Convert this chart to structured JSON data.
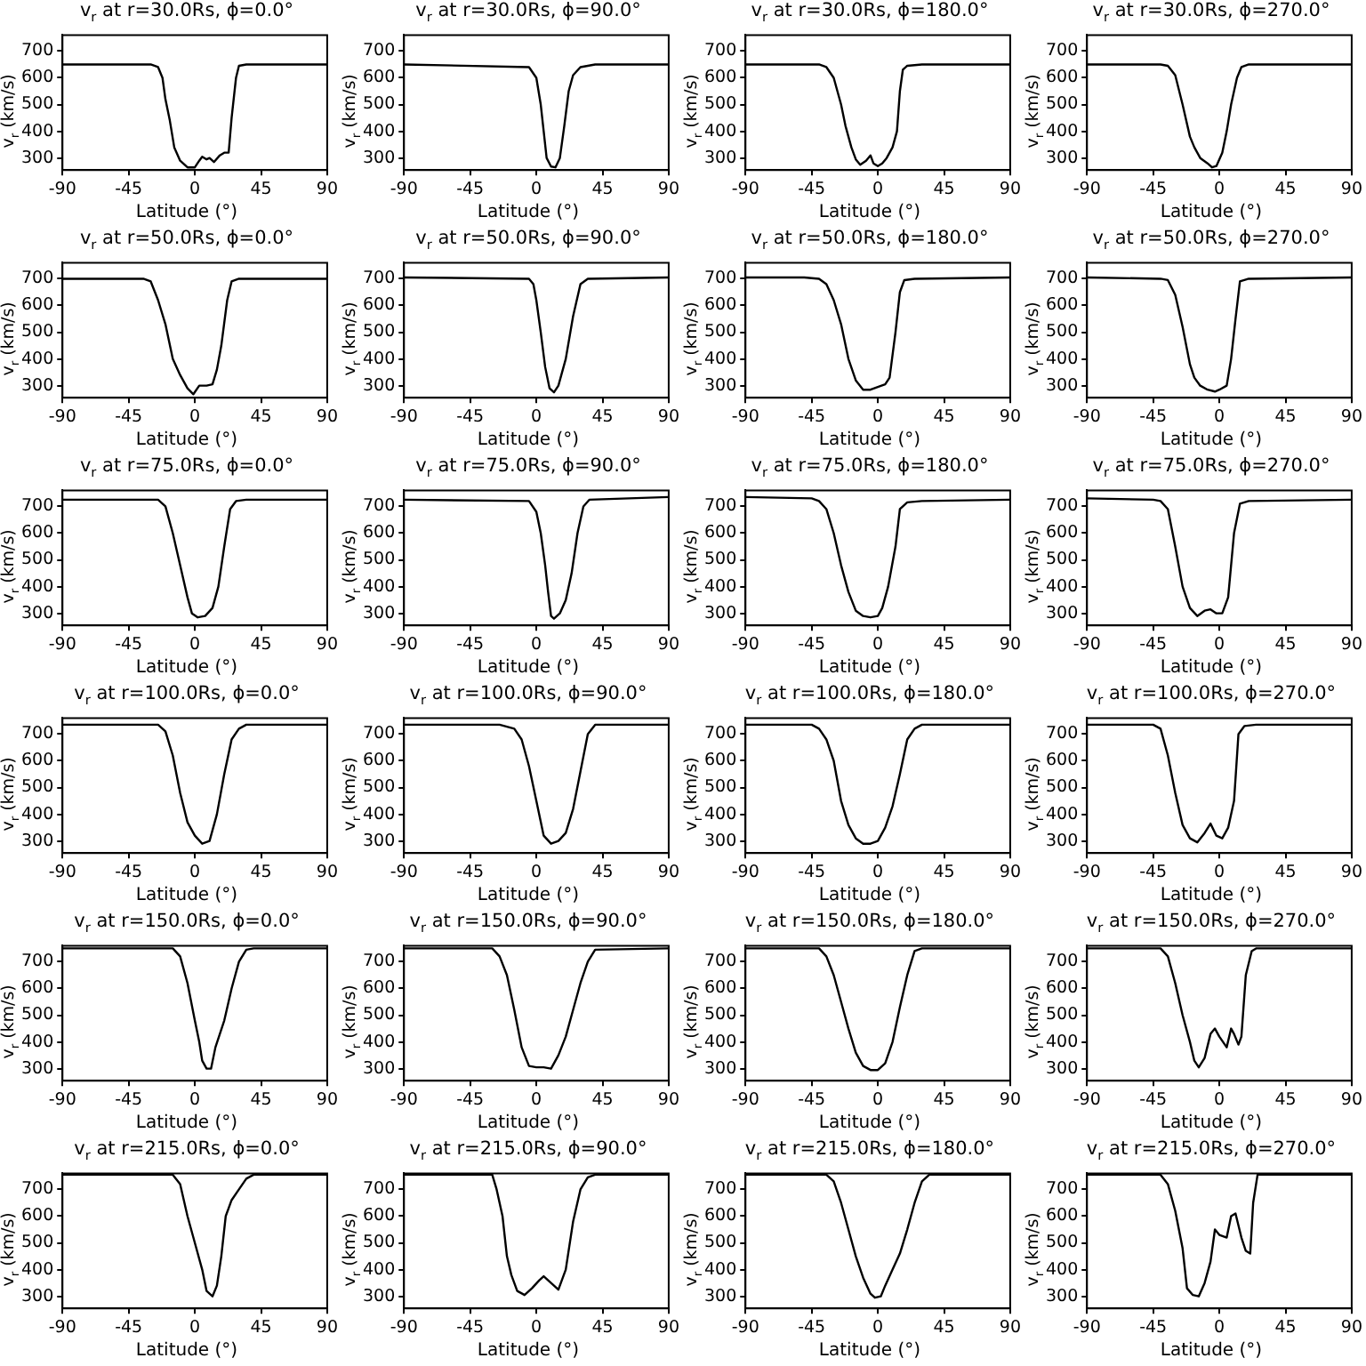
{
  "chart_data": [
    {
      "type": "line",
      "title": "v$_{r}$ at r=30.0Rs, ϕ=0.0°",
      "xlabel": "Latitude (°)",
      "ylabel": "v$_{r}$ (km/s)",
      "xlim": [
        -90,
        90
      ],
      "ylim": [
        255,
        760
      ],
      "xticks": [
        -90,
        -45,
        0,
        45,
        90
      ],
      "yticks": [
        300,
        400,
        500,
        600,
        700
      ],
      "marker": "none",
      "series": [
        {
          "color": "#000000",
          "x": [
            -90,
            -30,
            -25,
            -22,
            -20,
            -17,
            -14,
            -10,
            -5,
            0,
            3,
            5,
            8,
            10,
            13,
            17,
            20,
            23,
            25,
            28,
            30,
            35,
            90
          ],
          "values": [
            650,
            650,
            640,
            600,
            520,
            440,
            340,
            290,
            265,
            265,
            290,
            305,
            295,
            300,
            285,
            310,
            320,
            320,
            450,
            600,
            645,
            650,
            650
          ]
        }
      ]
    },
    {
      "type": "line",
      "title": "v$_{r}$ at r=30.0Rs, ϕ=90.0°",
      "xlabel": "Latitude (°)",
      "ylabel": "v$_{r}$ (km/s)",
      "xlim": [
        -90,
        90
      ],
      "ylim": [
        255,
        760
      ],
      "xticks": [
        -90,
        -45,
        0,
        45,
        90
      ],
      "yticks": [
        300,
        400,
        500,
        600,
        700
      ],
      "marker": "none",
      "series": [
        {
          "color": "#000000",
          "x": [
            -90,
            -5,
            0,
            3,
            5,
            7,
            10,
            13,
            16,
            19,
            22,
            25,
            30,
            40,
            90
          ],
          "values": [
            650,
            640,
            600,
            500,
            400,
            300,
            268,
            265,
            300,
            420,
            550,
            610,
            640,
            650,
            650
          ]
        }
      ]
    },
    {
      "type": "line",
      "title": "v$_{r}$ at r=30.0Rs, ϕ=180.0°",
      "xlabel": "Latitude (°)",
      "ylabel": "v$_{r}$ (km/s)",
      "xlim": [
        -90,
        90
      ],
      "ylim": [
        255,
        760
      ],
      "xticks": [
        -90,
        -45,
        0,
        45,
        90
      ],
      "yticks": [
        300,
        400,
        500,
        600,
        700
      ],
      "marker": "none",
      "series": [
        {
          "color": "#000000",
          "x": [
            -90,
            -40,
            -35,
            -30,
            -25,
            -22,
            -18,
            -15,
            -12,
            -8,
            -5,
            -3,
            0,
            3,
            6,
            8,
            10,
            13,
            15,
            17,
            20,
            30,
            90
          ],
          "values": [
            650,
            650,
            640,
            600,
            500,
            420,
            340,
            295,
            275,
            290,
            310,
            280,
            270,
            280,
            300,
            320,
            340,
            400,
            550,
            630,
            645,
            650,
            650
          ]
        }
      ]
    },
    {
      "type": "line",
      "title": "v$_{r}$ at r=30.0Rs, ϕ=270.0°",
      "xlabel": "Latitude (°)",
      "ylabel": "v$_{r}$ (km/s)",
      "xlim": [
        -90,
        90
      ],
      "ylim": [
        255,
        760
      ],
      "xticks": [
        -90,
        -45,
        0,
        45,
        90
      ],
      "yticks": [
        300,
        400,
        500,
        600,
        700
      ],
      "marker": "none",
      "series": [
        {
          "color": "#000000",
          "x": [
            -90,
            -40,
            -35,
            -30,
            -25,
            -20,
            -17,
            -13,
            -8,
            -5,
            -2,
            2,
            5,
            8,
            12,
            15,
            20,
            90
          ],
          "values": [
            650,
            650,
            645,
            610,
            500,
            380,
            340,
            300,
            280,
            265,
            270,
            320,
            400,
            500,
            600,
            640,
            650,
            650
          ]
        }
      ]
    },
    {
      "type": "line",
      "title": "v$_{r}$ at r=50.0Rs, ϕ=0.0°",
      "xlabel": "Latitude (°)",
      "ylabel": "v$_{r}$ (km/s)",
      "xlim": [
        -90,
        90
      ],
      "ylim": [
        255,
        760
      ],
      "xticks": [
        -90,
        -45,
        0,
        45,
        90
      ],
      "yticks": [
        300,
        400,
        500,
        600,
        700
      ],
      "marker": "none",
      "series": [
        {
          "color": "#000000",
          "x": [
            -90,
            -35,
            -30,
            -25,
            -20,
            -15,
            -10,
            -5,
            -1,
            3,
            8,
            12,
            15,
            18,
            22,
            25,
            30,
            90
          ],
          "values": [
            700,
            700,
            690,
            620,
            530,
            400,
            340,
            290,
            268,
            300,
            300,
            305,
            360,
            450,
            620,
            690,
            700,
            700
          ]
        }
      ]
    },
    {
      "type": "line",
      "title": "v$_{r}$ at r=50.0Rs, ϕ=90.0°",
      "xlabel": "Latitude (°)",
      "ylabel": "v$_{r}$ (km/s)",
      "xlim": [
        -90,
        90
      ],
      "ylim": [
        255,
        760
      ],
      "xticks": [
        -90,
        -45,
        0,
        45,
        90
      ],
      "yticks": [
        300,
        400,
        500,
        600,
        700
      ],
      "marker": "none",
      "series": [
        {
          "color": "#000000",
          "x": [
            -90,
            -5,
            -2,
            0,
            3,
            6,
            9,
            12,
            15,
            20,
            25,
            30,
            35,
            90
          ],
          "values": [
            705,
            700,
            680,
            620,
            500,
            370,
            290,
            275,
            300,
            400,
            560,
            680,
            700,
            705
          ]
        }
      ]
    },
    {
      "type": "line",
      "title": "v$_{r}$ at r=50.0Rs, ϕ=180.0°",
      "xlabel": "Latitude (°)",
      "ylabel": "v$_{r}$ (km/s)",
      "xlim": [
        -90,
        90
      ],
      "ylim": [
        255,
        760
      ],
      "xticks": [
        -90,
        -45,
        0,
        45,
        90
      ],
      "yticks": [
        300,
        400,
        500,
        600,
        700
      ],
      "marker": "none",
      "series": [
        {
          "color": "#000000",
          "x": [
            -90,
            -50,
            -40,
            -35,
            -30,
            -25,
            -20,
            -15,
            -10,
            -5,
            0,
            5,
            8,
            12,
            15,
            18,
            25,
            90
          ],
          "values": [
            705,
            705,
            700,
            680,
            620,
            530,
            400,
            320,
            285,
            285,
            295,
            305,
            330,
            500,
            650,
            695,
            700,
            705
          ]
        }
      ]
    },
    {
      "type": "line",
      "title": "v$_{r}$ at r=50.0Rs, ϕ=270.0°",
      "xlabel": "Latitude (°)",
      "ylabel": "v$_{r}$ (km/s)",
      "xlim": [
        -90,
        90
      ],
      "ylim": [
        255,
        760
      ],
      "xticks": [
        -90,
        -45,
        0,
        45,
        90
      ],
      "yticks": [
        300,
        400,
        500,
        600,
        700
      ],
      "marker": "none",
      "series": [
        {
          "color": "#000000",
          "x": [
            -90,
            -40,
            -35,
            -30,
            -25,
            -20,
            -17,
            -13,
            -8,
            -3,
            0,
            5,
            8,
            11,
            14,
            20,
            90
          ],
          "values": [
            705,
            700,
            695,
            640,
            520,
            380,
            330,
            300,
            285,
            278,
            285,
            300,
            400,
            550,
            690,
            700,
            705
          ]
        }
      ]
    },
    {
      "type": "line",
      "title": "v$_{r}$ at r=75.0Rs, ϕ=0.0°",
      "xlabel": "Latitude (°)",
      "ylabel": "v$_{r}$ (km/s)",
      "xlim": [
        -90,
        90
      ],
      "ylim": [
        255,
        760
      ],
      "xticks": [
        -90,
        -45,
        0,
        45,
        90
      ],
      "yticks": [
        300,
        400,
        500,
        600,
        700
      ],
      "marker": "none",
      "series": [
        {
          "color": "#000000",
          "x": [
            -90,
            -25,
            -20,
            -15,
            -10,
            -5,
            -2,
            2,
            7,
            12,
            16,
            20,
            24,
            28,
            35,
            90
          ],
          "values": [
            725,
            725,
            700,
            600,
            480,
            360,
            300,
            285,
            290,
            320,
            400,
            550,
            690,
            720,
            725,
            725
          ]
        }
      ]
    },
    {
      "type": "line",
      "title": "v$_{r}$ at r=75.0Rs, ϕ=90.0°",
      "xlabel": "Latitude (°)",
      "ylabel": "v$_{r}$ (km/s)",
      "xlim": [
        -90,
        90
      ],
      "ylim": [
        255,
        760
      ],
      "xticks": [
        -90,
        -45,
        0,
        45,
        90
      ],
      "yticks": [
        300,
        400,
        500,
        600,
        700
      ],
      "marker": "none",
      "series": [
        {
          "color": "#000000",
          "x": [
            -90,
            -5,
            0,
            3,
            6,
            8,
            10,
            12,
            16,
            20,
            24,
            28,
            32,
            36,
            90
          ],
          "values": [
            725,
            720,
            680,
            600,
            480,
            380,
            290,
            280,
            300,
            350,
            450,
            600,
            700,
            725,
            735
          ]
        }
      ]
    },
    {
      "type": "line",
      "title": "v$_{r}$ at r=75.0Rs, ϕ=180.0°",
      "xlabel": "Latitude (°)",
      "ylabel": "v$_{r}$ (km/s)",
      "xlim": [
        -90,
        90
      ],
      "ylim": [
        255,
        760
      ],
      "xticks": [
        -90,
        -45,
        0,
        45,
        90
      ],
      "yticks": [
        300,
        400,
        500,
        600,
        700
      ],
      "marker": "none",
      "series": [
        {
          "color": "#000000",
          "x": [
            -90,
            -45,
            -40,
            -35,
            -30,
            -25,
            -20,
            -15,
            -10,
            -5,
            0,
            3,
            7,
            12,
            15,
            20,
            30,
            90
          ],
          "values": [
            735,
            730,
            720,
            690,
            600,
            480,
            380,
            310,
            290,
            285,
            290,
            320,
            400,
            550,
            690,
            715,
            720,
            725
          ]
        }
      ]
    },
    {
      "type": "line",
      "title": "v$_{r}$ at r=75.0Rs, ϕ=270.0°",
      "xlabel": "Latitude (°)",
      "ylabel": "v$_{r}$ (km/s)",
      "xlim": [
        -90,
        90
      ],
      "ylim": [
        255,
        760
      ],
      "xticks": [
        -90,
        -45,
        0,
        45,
        90
      ],
      "yticks": [
        300,
        400,
        500,
        600,
        700
      ],
      "marker": "none",
      "series": [
        {
          "color": "#000000",
          "x": [
            -90,
            -45,
            -40,
            -35,
            -30,
            -25,
            -20,
            -15,
            -10,
            -6,
            -2,
            2,
            6,
            10,
            14,
            20,
            90
          ],
          "values": [
            730,
            725,
            720,
            690,
            550,
            400,
            320,
            290,
            310,
            315,
            300,
            300,
            360,
            600,
            710,
            720,
            725
          ]
        }
      ]
    },
    {
      "type": "line",
      "title": "v$_{r}$ at r=100.0Rs, ϕ=0.0°",
      "xlabel": "Latitude (°)",
      "ylabel": "v$_{r}$ (km/s)",
      "xlim": [
        -90,
        90
      ],
      "ylim": [
        255,
        760
      ],
      "xticks": [
        -90,
        -45,
        0,
        45,
        90
      ],
      "yticks": [
        300,
        400,
        500,
        600,
        700
      ],
      "marker": "none",
      "series": [
        {
          "color": "#000000",
          "x": [
            -90,
            -25,
            -20,
            -15,
            -10,
            -5,
            0,
            5,
            10,
            15,
            20,
            25,
            30,
            35,
            90
          ],
          "values": [
            735,
            735,
            710,
            620,
            480,
            370,
            320,
            290,
            300,
            400,
            550,
            680,
            720,
            735,
            735
          ]
        }
      ]
    },
    {
      "type": "line",
      "title": "v$_{r}$ at r=100.0Rs, ϕ=90.0°",
      "xlabel": "Latitude (°)",
      "ylabel": "v$_{r}$ (km/s)",
      "xlim": [
        -90,
        90
      ],
      "ylim": [
        255,
        760
      ],
      "xticks": [
        -90,
        -45,
        0,
        45,
        90
      ],
      "yticks": [
        300,
        400,
        500,
        600,
        700
      ],
      "marker": "none",
      "series": [
        {
          "color": "#000000",
          "x": [
            -90,
            -25,
            -15,
            -10,
            -5,
            0,
            5,
            10,
            15,
            20,
            25,
            30,
            35,
            40,
            90
          ],
          "values": [
            735,
            735,
            720,
            680,
            580,
            450,
            320,
            290,
            300,
            330,
            420,
            560,
            700,
            735,
            735
          ]
        }
      ]
    },
    {
      "type": "line",
      "title": "v$_{r}$ at r=100.0Rs, ϕ=180.0°",
      "xlabel": "Latitude (°)",
      "ylabel": "v$_{r}$ (km/s)",
      "xlim": [
        -90,
        90
      ],
      "ylim": [
        255,
        760
      ],
      "xticks": [
        -90,
        -45,
        0,
        45,
        90
      ],
      "yticks": [
        300,
        400,
        500,
        600,
        700
      ],
      "marker": "none",
      "series": [
        {
          "color": "#000000",
          "x": [
            -90,
            -45,
            -40,
            -35,
            -30,
            -25,
            -20,
            -15,
            -10,
            -5,
            0,
            5,
            10,
            15,
            20,
            25,
            30,
            90
          ],
          "values": [
            735,
            735,
            720,
            680,
            600,
            450,
            360,
            310,
            290,
            290,
            300,
            350,
            430,
            550,
            680,
            720,
            735,
            735
          ]
        }
      ]
    },
    {
      "type": "line",
      "title": "v$_{r}$ at r=100.0Rs, ϕ=270.0°",
      "xlabel": "Latitude (°)",
      "ylabel": "v$_{r}$ (km/s)",
      "xlim": [
        -90,
        90
      ],
      "ylim": [
        255,
        760
      ],
      "xticks": [
        -90,
        -45,
        0,
        45,
        90
      ],
      "yticks": [
        300,
        400,
        500,
        600,
        700
      ],
      "marker": "none",
      "series": [
        {
          "color": "#000000",
          "x": [
            -90,
            -45,
            -40,
            -35,
            -30,
            -25,
            -20,
            -15,
            -10,
            -6,
            -2,
            2,
            6,
            10,
            13,
            17,
            25,
            90
          ],
          "values": [
            735,
            735,
            720,
            620,
            480,
            360,
            310,
            295,
            330,
            365,
            320,
            310,
            350,
            450,
            700,
            730,
            735,
            735
          ]
        }
      ]
    },
    {
      "type": "line",
      "title": "v$_{r}$ at r=150.0Rs, ϕ=0.0°",
      "xlabel": "Latitude (°)",
      "ylabel": "v$_{r}$ (km/s)",
      "xlim": [
        -90,
        90
      ],
      "ylim": [
        255,
        760
      ],
      "xticks": [
        -90,
        -45,
        0,
        45,
        90
      ],
      "yticks": [
        300,
        400,
        500,
        600,
        700
      ],
      "marker": "none",
      "series": [
        {
          "color": "#000000",
          "x": [
            -90,
            -15,
            -10,
            -5,
            0,
            3,
            5,
            8,
            11,
            14,
            17,
            20,
            25,
            30,
            35,
            40,
            90
          ],
          "values": [
            750,
            750,
            720,
            620,
            480,
            400,
            330,
            300,
            300,
            380,
            430,
            480,
            600,
            700,
            745,
            750,
            750
          ]
        }
      ]
    },
    {
      "type": "line",
      "title": "v$_{r}$ at r=150.0Rs, ϕ=90.0°",
      "xlabel": "Latitude (°)",
      "ylabel": "v$_{r}$ (km/s)",
      "xlim": [
        -90,
        90
      ],
      "ylim": [
        255,
        760
      ],
      "xticks": [
        -90,
        -45,
        0,
        45,
        90
      ],
      "yticks": [
        300,
        400,
        500,
        600,
        700
      ],
      "marker": "none",
      "series": [
        {
          "color": "#000000",
          "x": [
            -90,
            -30,
            -25,
            -20,
            -15,
            -10,
            -5,
            0,
            5,
            10,
            15,
            20,
            25,
            30,
            35,
            40,
            90
          ],
          "values": [
            750,
            750,
            720,
            650,
            520,
            380,
            310,
            305,
            305,
            300,
            350,
            420,
            520,
            620,
            700,
            745,
            750
          ]
        }
      ]
    },
    {
      "type": "line",
      "title": "v$_{r}$ at r=150.0Rs, ϕ=180.0°",
      "xlabel": "Latitude (°)",
      "ylabel": "v$_{r}$ (km/s)",
      "xlim": [
        -90,
        90
      ],
      "ylim": [
        255,
        760
      ],
      "xticks": [
        -90,
        -45,
        0,
        45,
        90
      ],
      "yticks": [
        300,
        400,
        500,
        600,
        700
      ],
      "marker": "none",
      "series": [
        {
          "color": "#000000",
          "x": [
            -90,
            -40,
            -35,
            -30,
            -25,
            -20,
            -15,
            -10,
            -5,
            0,
            5,
            10,
            15,
            20,
            25,
            30,
            90
          ],
          "values": [
            750,
            750,
            720,
            650,
            550,
            450,
            360,
            310,
            295,
            295,
            320,
            400,
            530,
            650,
            740,
            750,
            750
          ]
        }
      ]
    },
    {
      "type": "line",
      "title": "v$_{r}$ at r=150.0Rs, ϕ=270.0°",
      "xlabel": "Latitude (°)",
      "ylabel": "v$_{r}$ (km/s)",
      "xlim": [
        -90,
        90
      ],
      "ylim": [
        255,
        760
      ],
      "xticks": [
        -90,
        -45,
        0,
        45,
        90
      ],
      "yticks": [
        300,
        400,
        500,
        600,
        700
      ],
      "marker": "none",
      "series": [
        {
          "color": "#000000",
          "x": [
            -90,
            -40,
            -35,
            -30,
            -25,
            -20,
            -17,
            -14,
            -10,
            -6,
            -3,
            0,
            5,
            8,
            10,
            13,
            15,
            18,
            22,
            25,
            90
          ],
          "values": [
            750,
            750,
            720,
            620,
            500,
            400,
            330,
            305,
            340,
            430,
            450,
            420,
            380,
            450,
            430,
            390,
            420,
            650,
            740,
            750,
            750
          ]
        }
      ]
    },
    {
      "type": "line",
      "title": "v$_{r}$ at r=215.0Rs, ϕ=0.0°",
      "xlabel": "Latitude (°)",
      "ylabel": "v$_{r}$ (km/s)",
      "xlim": [
        -90,
        90
      ],
      "ylim": [
        255,
        760
      ],
      "xticks": [
        -90,
        -45,
        0,
        45,
        90
      ],
      "yticks": [
        300,
        400,
        500,
        600,
        700
      ],
      "marker": "none",
      "series": [
        {
          "color": "#000000",
          "x": [
            -90,
            -15,
            -10,
            -5,
            0,
            5,
            8,
            12,
            15,
            18,
            21,
            25,
            30,
            35,
            40,
            90
          ],
          "values": [
            755,
            755,
            720,
            600,
            500,
            400,
            320,
            300,
            340,
            450,
            600,
            660,
            700,
            740,
            755,
            755
          ]
        }
      ]
    },
    {
      "type": "line",
      "title": "v$_{r}$ at r=215.0Rs, ϕ=90.0°",
      "xlabel": "Latitude (°)",
      "ylabel": "v$_{r}$ (km/s)",
      "xlim": [
        -90,
        90
      ],
      "ylim": [
        255,
        760
      ],
      "xticks": [
        -90,
        -45,
        0,
        45,
        90
      ],
      "yticks": [
        300,
        400,
        500,
        600,
        700
      ],
      "marker": "none",
      "series": [
        {
          "color": "#000000",
          "x": [
            -90,
            -30,
            -27,
            -23,
            -20,
            -17,
            -13,
            -8,
            -3,
            2,
            5,
            10,
            15,
            20,
            25,
            30,
            35,
            40,
            90
          ],
          "values": [
            755,
            755,
            700,
            600,
            450,
            380,
            320,
            305,
            330,
            360,
            375,
            350,
            325,
            400,
            580,
            700,
            745,
            755,
            755
          ]
        }
      ]
    },
    {
      "type": "line",
      "title": "v$_{r}$ at r=215.0Rs, ϕ=180.0°",
      "xlabel": "Latitude (°)",
      "ylabel": "v$_{r}$ (km/s)",
      "xlim": [
        -90,
        90
      ],
      "ylim": [
        255,
        760
      ],
      "xticks": [
        -90,
        -45,
        0,
        45,
        90
      ],
      "yticks": [
        300,
        400,
        500,
        600,
        700
      ],
      "marker": "none",
      "series": [
        {
          "color": "#000000",
          "x": [
            -90,
            -35,
            -30,
            -25,
            -20,
            -15,
            -10,
            -5,
            -2,
            2,
            5,
            10,
            15,
            20,
            25,
            30,
            35,
            90
          ],
          "values": [
            755,
            755,
            730,
            650,
            550,
            450,
            370,
            310,
            295,
            300,
            340,
            400,
            460,
            550,
            650,
            730,
            755,
            755
          ]
        }
      ]
    },
    {
      "type": "line",
      "title": "v$_{r}$ at r=215.0Rs, ϕ=270.0°",
      "xlabel": "Latitude (°)",
      "ylabel": "v$_{r}$ (km/s)",
      "xlim": [
        -90,
        90
      ],
      "ylim": [
        255,
        760
      ],
      "xticks": [
        -90,
        -45,
        0,
        45,
        90
      ],
      "yticks": [
        300,
        400,
        500,
        600,
        700
      ],
      "marker": "none",
      "series": [
        {
          "color": "#000000",
          "x": [
            -90,
            -40,
            -35,
            -30,
            -25,
            -22,
            -18,
            -14,
            -10,
            -6,
            -3,
            0,
            5,
            8,
            11,
            15,
            18,
            21,
            23,
            26,
            90
          ],
          "values": [
            755,
            755,
            720,
            620,
            480,
            330,
            305,
            300,
            350,
            430,
            550,
            530,
            520,
            600,
            610,
            520,
            470,
            460,
            650,
            755,
            755
          ]
        }
      ]
    }
  ]
}
